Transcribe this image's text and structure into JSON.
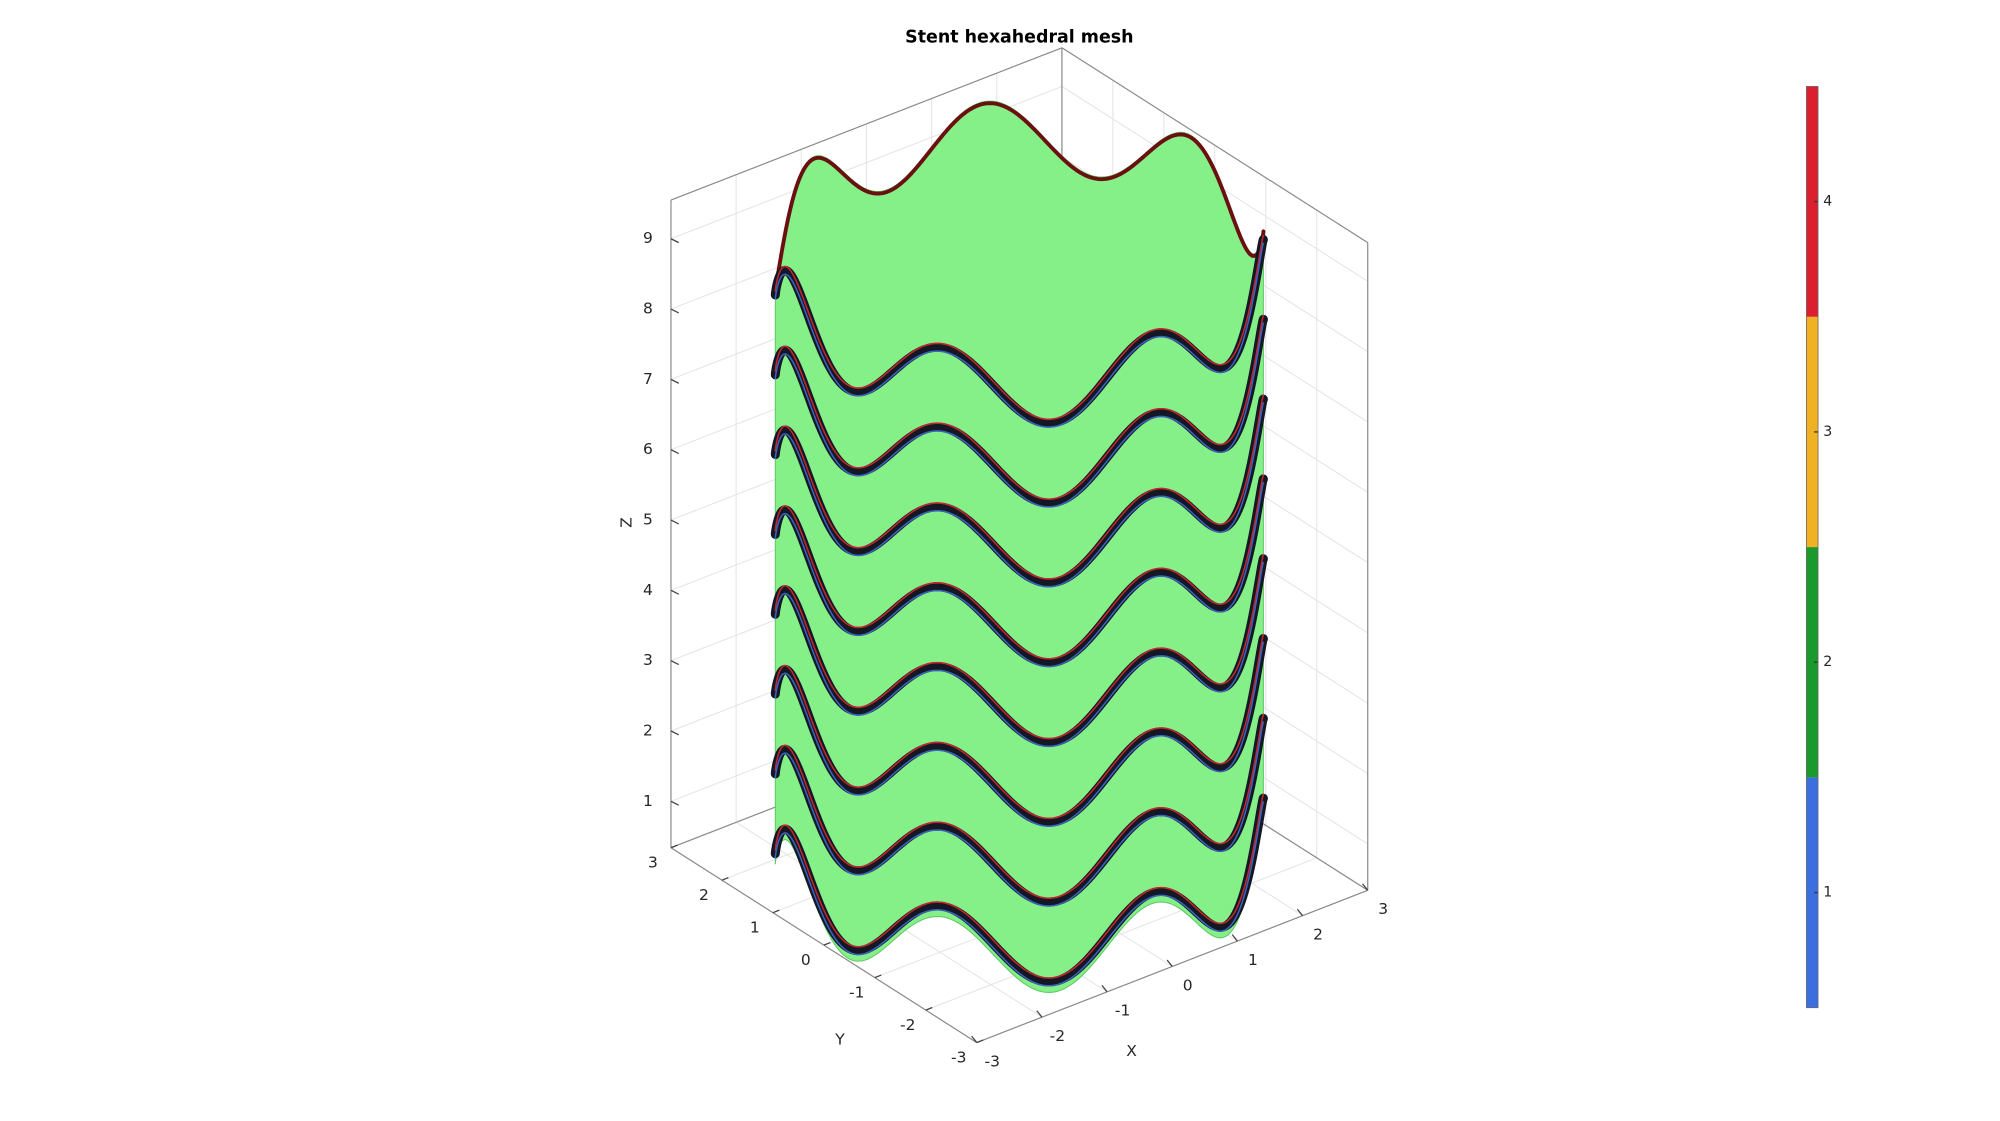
{
  "chart_data": {
    "type": "surface3d",
    "title": "Stent hexahedral mesh",
    "xlabel": "X",
    "ylabel": "Y",
    "zlabel": "Z",
    "xlim": [
      -3,
      3
    ],
    "xticks": [
      -3,
      -2,
      -1,
      0,
      1,
      2,
      3
    ],
    "ylim": [
      -3,
      3
    ],
    "yticks": [
      -3,
      -2,
      -1,
      0,
      1,
      2,
      3
    ],
    "zlim": [
      0.34,
      9.55
    ],
    "zticks": [
      1,
      2,
      3,
      4,
      5,
      6,
      7,
      8,
      9
    ],
    "grid": true,
    "surface_color": "#86f088",
    "colorbar": {
      "lim": [
        0.5,
        4.5
      ],
      "ticks": [
        1,
        2,
        3,
        4
      ],
      "colors": [
        "#3b6fe0",
        "#1a9a2c",
        "#f0b222",
        "#dc1f2e"
      ]
    }
  }
}
